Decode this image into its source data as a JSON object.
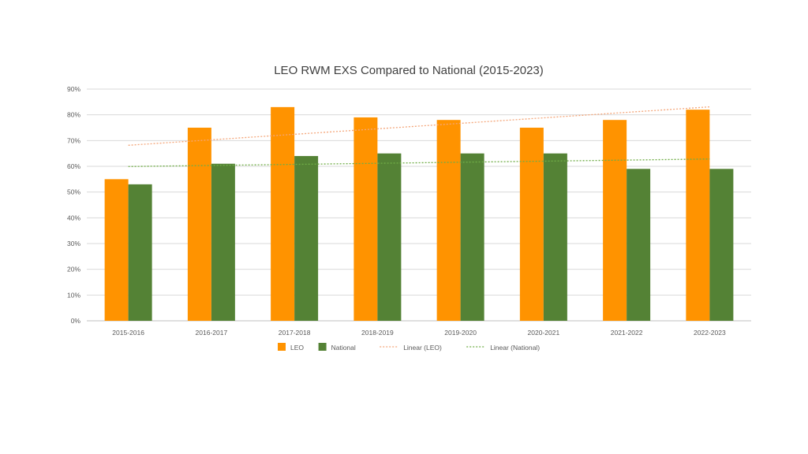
{
  "chart_data": {
    "type": "bar",
    "title": "LEO RWM EXS Compared to National (2015-2023)",
    "xlabel": "",
    "ylabel": "",
    "categories": [
      "2015-2016",
      "2016-2017",
      "2017-2018",
      "2018-2019",
      "2019-2020",
      "2020-2021",
      "2021-2022",
      "2022-2023"
    ],
    "series": [
      {
        "name": "LEO",
        "values": [
          55,
          75,
          83,
          79,
          78,
          75,
          78,
          82
        ],
        "color": "#ff9300"
      },
      {
        "name": "National",
        "values": [
          53,
          61,
          64,
          65,
          65,
          65,
          59,
          59
        ],
        "color": "#548235"
      }
    ],
    "trendlines": [
      {
        "name": "Linear (LEO)",
        "series": "LEO",
        "type": "linear",
        "style": "dotted",
        "color": "#f4a67a"
      },
      {
        "name": "Linear (National)",
        "series": "National",
        "type": "linear",
        "style": "dotted",
        "color": "#70ad47"
      }
    ],
    "ylim": [
      0,
      90
    ],
    "yticks": [
      0,
      10,
      20,
      30,
      40,
      50,
      60,
      70,
      80,
      90
    ],
    "ytick_labels": [
      "0%",
      "10%",
      "20%",
      "30%",
      "40%",
      "50%",
      "60%",
      "70%",
      "80%",
      "90%"
    ],
    "grid": true,
    "legend_position": "bottom"
  }
}
